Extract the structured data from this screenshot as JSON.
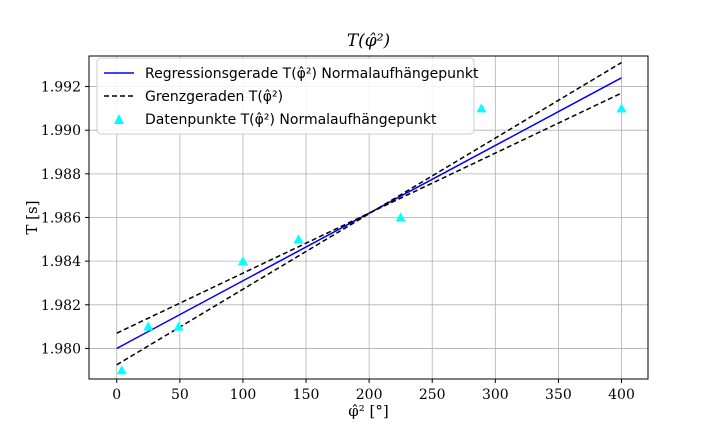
{
  "chart_data": {
    "type": "line",
    "title": "T(φ̂²)",
    "xlabel": "φ̂² [°]",
    "ylabel": "T [s]",
    "xlim": [
      -22,
      421
    ],
    "ylim": [
      1.9786,
      1.9934
    ],
    "xticks": [
      0,
      50,
      100,
      150,
      200,
      250,
      300,
      350,
      400
    ],
    "yticks": [
      1.98,
      1.982,
      1.984,
      1.986,
      1.988,
      1.99,
      1.992
    ],
    "x_tick_labels": [
      "0",
      "50",
      "100",
      "150",
      "200",
      "250",
      "300",
      "350",
      "400"
    ],
    "y_tick_labels": [
      "1.980",
      "1.982",
      "1.984",
      "1.986",
      "1.988",
      "1.990",
      "1.992"
    ],
    "grid": true,
    "legend_position": "top-left",
    "series": [
      {
        "name": "Regressionsgerade T(φ̂²) Normalaufhängepunkt",
        "kind": "line",
        "style": "solid",
        "color": "#0000ff",
        "x": [
          0,
          400
        ],
        "y": [
          1.98,
          1.9924
        ]
      },
      {
        "name": "Grenzgeraden T(φ̂²)",
        "kind": "line",
        "style": "dashed",
        "color": "#000000",
        "x": [
          0,
          400
        ],
        "y": [
          1.97925,
          1.9931
        ]
      },
      {
        "name": "",
        "kind": "line",
        "style": "dashed",
        "color": "#000000",
        "x": [
          0,
          400
        ],
        "y": [
          1.9807,
          1.9917
        ]
      },
      {
        "name": "Datenpunkte T(φ̂²) Normalaufhängepunkt",
        "kind": "scatter",
        "marker": "triangle",
        "color": "#00ffff",
        "x": [
          4,
          25,
          49,
          100,
          144,
          225,
          289,
          400
        ],
        "y": [
          1.979,
          1.981,
          1.981,
          1.984,
          1.985,
          1.986,
          1.991,
          1.991
        ]
      }
    ]
  }
}
